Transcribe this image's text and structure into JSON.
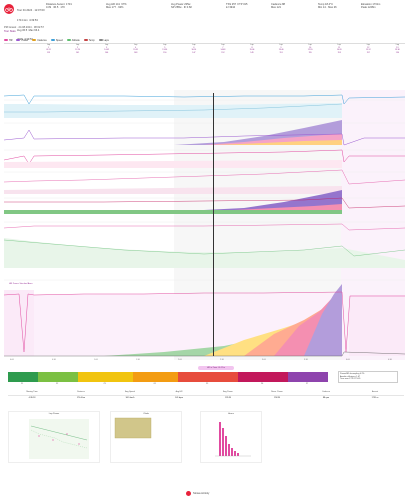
{
  "header": {
    "athlete_line1": "Tour Fit 2024 · 12:07:00",
    "athlete_line2": "170.4 km  4:39:53",
    "athlete_line3": "Avg 36.5  Max 66.4",
    "athlete_line4": "2025  4:39:53",
    "stat_cols": [
      {
        "label": "Distance Ascent  1731",
        "value": "4:39   36.5   170"
      },
      {
        "label": "Avg HR 141  67%",
        "value": "Max 177 · 92%"
      },
      {
        "label": "Avg Power 235w",
        "value": "NP 258w · IF 0.82"
      },
      {
        "label": "TSS 257  FTP 315",
        "value": "kJ 3944"
      },
      {
        "label": "Cadence 88",
        "value": "Max 121"
      },
      {
        "label": "Temp 18.4°C",
        "value": "Min 14 · Max 26"
      },
      {
        "label": "Elevation 1731m",
        "value": "Peak 1248m"
      }
    ]
  },
  "subtitle": "PM Gravel · 24.08.2024 · 08:02:57",
  "subtitle2": "Tour Stats",
  "legend": [
    {
      "label": "HR",
      "color": "#e14aa0"
    },
    {
      "label": "Power",
      "color": "#9b59d0"
    },
    {
      "label": "Cadence",
      "color": "#e0a020"
    },
    {
      "label": "Speed",
      "color": "#3fa0d8"
    },
    {
      "label": "Altitude",
      "color": "#5fbf6f"
    },
    {
      "label": "Temp",
      "color": "#c54545"
    },
    {
      "label": "Laps",
      "color": "#888888"
    }
  ],
  "laps": [
    {
      "hd": "Lap",
      "a": "1",
      "b": "02:11",
      "c": "113"
    },
    {
      "hd": "Lap",
      "a": "2",
      "b": "12:24",
      "c": "141"
    },
    {
      "hd": "Lap",
      "a": "3",
      "b": "14:02",
      "c": "146"
    },
    {
      "hd": "Lap",
      "a": "4",
      "b": "15:31",
      "c": "148"
    },
    {
      "hd": "Lap",
      "a": "5",
      "b": "13:56",
      "c": "150"
    },
    {
      "hd": "Lap",
      "a": "6",
      "b": "16:14",
      "c": "147"
    },
    {
      "hd": "Lap",
      "a": "7",
      "b": "14:48",
      "c": "152"
    },
    {
      "hd": "Lap",
      "a": "8",
      "b": "15:06",
      "c": "149"
    },
    {
      "hd": "Lap",
      "a": "9",
      "b": "13:40",
      "c": "151"
    },
    {
      "hd": "Lap",
      "a": "10",
      "b": "12:55",
      "c": "155"
    },
    {
      "hd": "Lap",
      "a": "11",
      "b": "14:20",
      "c": "153"
    },
    {
      "hd": "Lap",
      "a": "12",
      "b": "15:12",
      "c": "157"
    },
    {
      "hd": "Lap",
      "a": "13",
      "b": "13:30",
      "c": "154"
    },
    {
      "hd": "Lap",
      "a": "14",
      "b": "03:44",
      "c": "120"
    }
  ],
  "axis_labels": {
    "main_x": [
      "0:00",
      "0:30",
      "1:00",
      "1:30",
      "2:00",
      "2:30",
      "3:00",
      "3:30",
      "4:00",
      "4:30"
    ]
  },
  "main_chart_title": "HR Zones Stacked Area",
  "zones": [
    {
      "label": "Z1",
      "color": "#2e9b4e"
    },
    {
      "label": "Z2",
      "color": "#7bc043"
    },
    {
      "label": "Z3",
      "color": "#f1c40f"
    },
    {
      "label": "Z4",
      "color": "#f39c12"
    },
    {
      "label": "Z5",
      "color": "#e74c3c"
    },
    {
      "label": "Z6",
      "color": "#c2185b"
    },
    {
      "label": "Z7",
      "color": "#8e44ad"
    }
  ],
  "zone_pill": "HR in Zone: 4h 12m",
  "mini_box_lines": [
    "Power/HR decoupling 4.2%",
    "Aerobic efficiency 1.67",
    "Time over FTP 0:21:05"
  ],
  "table": {
    "headers": [
      "Moving Time",
      "Distance",
      "Avg Speed",
      "Avg HR",
      "Avg Power",
      "Norm. Power",
      "Cadence",
      "Ascent"
    ],
    "values": [
      "4:39:53",
      "170.4 km",
      "36.5 km/h",
      "141 bpm",
      "235 W",
      "258 W",
      "88 rpm",
      "1731 m"
    ]
  },
  "small_charts": [
    {
      "title": "Lap Power"
    },
    {
      "title": "Climb"
    },
    {
      "title": "Hours"
    }
  ],
  "badge_text": "Strava Activity"
}
